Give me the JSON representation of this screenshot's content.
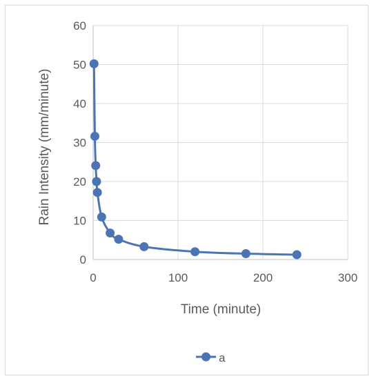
{
  "chart_data": {
    "type": "line",
    "title": "",
    "xlabel": "Time (minute)",
    "ylabel": "Rain Intensity (mm/minute)",
    "xlim": [
      0,
      300
    ],
    "ylim": [
      0,
      60
    ],
    "x_ticks": [
      0,
      100,
      200,
      300
    ],
    "y_ticks": [
      0,
      10,
      20,
      30,
      40,
      50,
      60
    ],
    "grid": true,
    "legend_position": "bottom",
    "series": [
      {
        "name": "a",
        "color": "#4a74b4",
        "marker": "circle",
        "smooth": true,
        "x": [
          1,
          2,
          3,
          4,
          5,
          10,
          20,
          30,
          60,
          120,
          180,
          240
        ],
        "y": [
          50.2,
          31.6,
          24.1,
          20.0,
          17.2,
          10.9,
          6.8,
          5.2,
          3.3,
          2.0,
          1.5,
          1.25
        ]
      }
    ]
  }
}
